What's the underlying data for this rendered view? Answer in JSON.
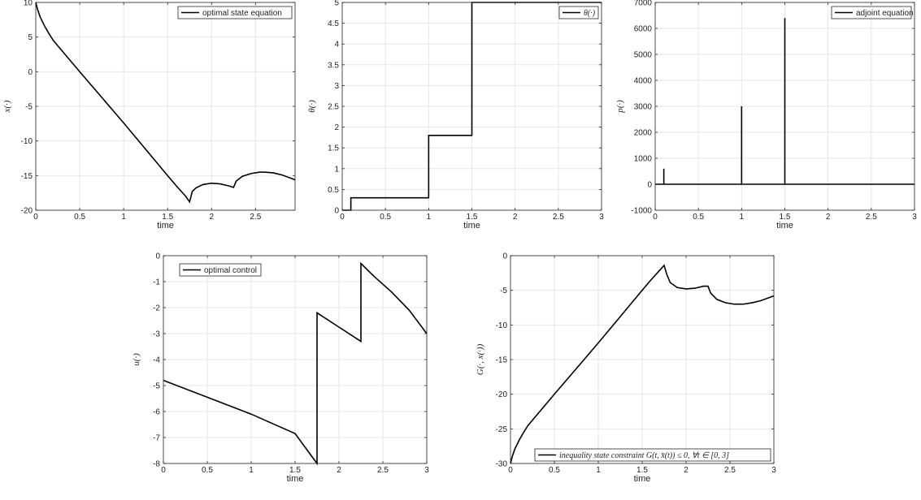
{
  "chart_data": [
    {
      "id": "state",
      "type": "line",
      "xlabel": "time",
      "ylabel": "x(·)",
      "xlim": [
        0,
        2.95
      ],
      "ylim": [
        -20,
        10
      ],
      "xticks": [
        0,
        0.5,
        1,
        1.5,
        2,
        2.5
      ],
      "yticks": [
        -20,
        -15,
        -10,
        -5,
        0,
        5,
        10
      ],
      "xtick_labels": [
        "0",
        "0.5",
        "1",
        "1.5",
        "2",
        "2.5"
      ],
      "ytick_labels": [
        "-20",
        "-15",
        "-10",
        "-5",
        "0",
        "5",
        "10"
      ],
      "grid": true,
      "legend_position": "top-right",
      "series": [
        {
          "name": "optimal state equation",
          "x": [
            0,
            0.02,
            0.05,
            0.1,
            0.15,
            0.2,
            0.3,
            0.5,
            0.75,
            1.0,
            1.25,
            1.5,
            1.6,
            1.7,
            1.75,
            1.78,
            1.82,
            1.9,
            2.0,
            2.1,
            2.2,
            2.25,
            2.28,
            2.35,
            2.45,
            2.55,
            2.6,
            2.7,
            2.8,
            2.95
          ],
          "y": [
            10,
            9.0,
            7.9,
            6.6,
            5.5,
            4.5,
            3.0,
            0,
            -3.7,
            -7.4,
            -11.2,
            -15.0,
            -16.5,
            -17.9,
            -18.8,
            -17.3,
            -16.8,
            -16.3,
            -16.1,
            -16.2,
            -16.5,
            -16.7,
            -15.8,
            -15.1,
            -14.7,
            -14.5,
            -14.5,
            -14.6,
            -14.9,
            -15.6
          ]
        }
      ]
    },
    {
      "id": "theta",
      "type": "line",
      "xlabel": "time",
      "ylabel": "θ(·)",
      "xlim": [
        0,
        3
      ],
      "ylim": [
        0,
        5
      ],
      "xticks": [
        0,
        0.5,
        1,
        1.5,
        2,
        2.5,
        3
      ],
      "yticks": [
        0,
        0.5,
        1,
        1.5,
        2,
        2.5,
        3,
        3.5,
        4,
        4.5,
        5
      ],
      "xtick_labels": [
        "0",
        "0.5",
        "1",
        "1.5",
        "2",
        "2.5",
        "3"
      ],
      "ytick_labels": [
        "0",
        "0.5",
        "1",
        "1.5",
        "2",
        "2.5",
        "3",
        "3.5",
        "4",
        "4.5",
        "5"
      ],
      "grid": true,
      "legend_position": "top-right",
      "series": [
        {
          "name": "θ(·)",
          "x": [
            0,
            0.1,
            0.1,
            1,
            1,
            1.5,
            1.5,
            3
          ],
          "y": [
            0,
            0,
            0.3,
            0.3,
            1.8,
            1.8,
            5,
            5
          ]
        }
      ]
    },
    {
      "id": "adjoint",
      "type": "line",
      "xlabel": "time",
      "ylabel": "p(·)",
      "xlim": [
        0,
        3
      ],
      "ylim": [
        -1000,
        7000
      ],
      "xticks": [
        0,
        0.5,
        1,
        1.5,
        2,
        2.5,
        3
      ],
      "yticks": [
        -1000,
        0,
        1000,
        2000,
        3000,
        4000,
        5000,
        6000,
        7000
      ],
      "xtick_labels": [
        "0",
        "0.5",
        "1",
        "1.5",
        "2",
        "2.5",
        "3"
      ],
      "ytick_labels": [
        "-1000",
        "0",
        "1000",
        "2000",
        "3000",
        "4000",
        "5000",
        "6000",
        "7000"
      ],
      "grid": true,
      "legend_position": "top-right",
      "series": [
        {
          "name": "adjoint equation",
          "x": [
            0,
            0.1,
            0.1,
            0.1,
            1,
            1,
            1,
            1.5,
            1.5,
            1.5,
            3
          ],
          "y": [
            0,
            0,
            600,
            0,
            0,
            3000,
            0,
            0,
            6400,
            0,
            0
          ]
        }
      ]
    },
    {
      "id": "control",
      "type": "line",
      "xlabel": "time",
      "ylabel": "u(·)",
      "xlim": [
        0,
        3
      ],
      "ylim": [
        -8,
        0
      ],
      "xticks": [
        0,
        0.5,
        1,
        1.5,
        2,
        2.5,
        3
      ],
      "yticks": [
        -8,
        -7,
        -6,
        -5,
        -4,
        -3,
        -2,
        -1,
        0
      ],
      "xtick_labels": [
        "0",
        "0.5",
        "1",
        "1.5",
        "2",
        "2.5",
        "3"
      ],
      "ytick_labels": [
        "-8",
        "-7",
        "-6",
        "-5",
        "-4",
        "-3",
        "-2",
        "-1",
        "0"
      ],
      "grid": true,
      "legend_position": "top-left",
      "series": [
        {
          "name": "optimal control",
          "x": [
            0,
            0.5,
            1.0,
            1.5,
            1.75,
            1.75,
            2.0,
            2.25,
            2.25,
            2.4,
            2.6,
            2.8,
            3.0
          ],
          "y": [
            -4.8,
            -5.45,
            -6.1,
            -6.85,
            -8.0,
            -2.2,
            -2.75,
            -3.3,
            -0.3,
            -0.8,
            -1.4,
            -2.1,
            -3.0
          ]
        }
      ]
    },
    {
      "id": "constraint",
      "type": "line",
      "xlabel": "time",
      "ylabel": "G(·, x(·))",
      "xlim": [
        0,
        3
      ],
      "ylim": [
        -30,
        0
      ],
      "xticks": [
        0,
        0.5,
        1,
        1.5,
        2,
        2.5,
        3
      ],
      "yticks": [
        -30,
        -25,
        -20,
        -15,
        -10,
        -5,
        0
      ],
      "xtick_labels": [
        "0",
        "0.5",
        "1",
        "1.5",
        "2",
        "2.5",
        "3"
      ],
      "ytick_labels": [
        "-30",
        "-25",
        "-20",
        "-15",
        "-10",
        "-5",
        "0"
      ],
      "grid": true,
      "legend_position": "bottom-right",
      "series": [
        {
          "name": "inequality state constraint G(t, x̄(t)) ≤ 0, ∀t ∈ [0, 3]",
          "x": [
            0,
            0.02,
            0.05,
            0.1,
            0.15,
            0.2,
            0.3,
            0.5,
            0.75,
            1.0,
            1.25,
            1.5,
            1.6,
            1.7,
            1.75,
            1.78,
            1.82,
            1.9,
            2.0,
            2.1,
            2.2,
            2.25,
            2.28,
            2.35,
            2.45,
            2.55,
            2.65,
            2.75,
            2.85,
            3.0
          ],
          "y": [
            -30,
            -29.0,
            -27.9,
            -26.6,
            -25.5,
            -24.5,
            -23.0,
            -20.0,
            -16.3,
            -12.6,
            -8.8,
            -5.0,
            -3.5,
            -2.1,
            -1.4,
            -2.7,
            -3.9,
            -4.6,
            -4.8,
            -4.7,
            -4.4,
            -4.4,
            -5.4,
            -6.3,
            -6.8,
            -7.0,
            -7.0,
            -6.8,
            -6.5,
            -5.8
          ]
        }
      ]
    }
  ]
}
